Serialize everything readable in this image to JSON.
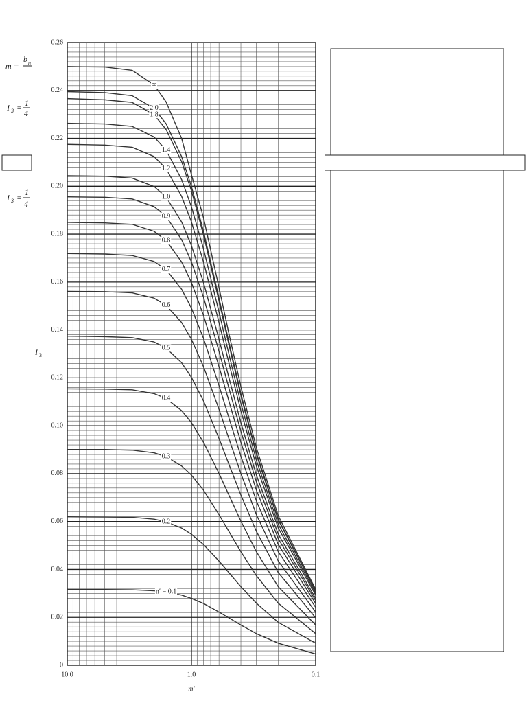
{
  "chart_data": {
    "type": "line",
    "xlabel": "m′",
    "ylabel": "I",
    "ylabel_sub": "3",
    "x": [
      10,
      5,
      3,
      2,
      1.6,
      1.2,
      1.0,
      0.8,
      0.6,
      0.5,
      0.4,
      0.3,
      0.2,
      0.1
    ],
    "xlim": [
      10,
      0.1
    ],
    "xscale": "log",
    "xticks": [
      {
        "value": 10,
        "label": "10.0"
      },
      {
        "value": 1,
        "label": "1.0"
      },
      {
        "value": 0.1,
        "label": "0.1"
      }
    ],
    "minor_xticks": [
      9,
      8,
      7,
      6,
      5,
      4,
      3,
      2,
      0.9,
      0.8,
      0.7,
      0.6,
      0.5,
      0.4,
      0.3,
      0.2
    ],
    "ylim": [
      0,
      0.26
    ],
    "yticks": [
      0,
      0.02,
      0.04,
      0.06,
      0.08,
      {
        "value": 0.1,
        "label": "0.10"
      },
      0.12,
      0.14,
      0.16,
      0.18,
      {
        "value": 0.2,
        "label": "0.20"
      },
      0.22,
      0.24,
      0.26
    ],
    "minor_yticks": [
      0.002,
      0.004,
      0.006,
      0.008,
      0.01,
      0.012,
      0.014,
      0.016,
      0.018,
      0.022,
      0.024,
      0.026,
      0.028,
      0.03,
      0.032,
      0.034,
      0.036,
      0.038,
      0.042,
      0.044,
      0.046,
      0.048,
      0.05,
      0.052,
      0.054,
      0.056,
      0.058,
      0.062,
      0.064,
      0.066,
      0.068,
      0.07,
      0.072,
      0.074,
      0.076,
      0.078,
      0.082,
      0.084,
      0.086,
      0.088,
      0.09,
      0.092,
      0.094,
      0.096,
      0.098,
      0.102,
      0.104,
      0.106,
      0.108,
      0.11,
      0.112,
      0.114,
      0.116,
      0.118,
      0.122,
      0.124,
      0.126,
      0.128,
      0.13,
      0.132,
      0.134,
      0.136,
      0.138,
      0.142,
      0.144,
      0.146,
      0.148,
      0.15,
      0.152,
      0.154,
      0.156,
      0.158,
      0.162,
      0.164,
      0.166,
      0.168,
      0.17,
      0.172,
      0.174,
      0.176,
      0.178,
      0.182,
      0.184,
      0.186,
      0.188,
      0.19,
      0.192,
      0.194,
      0.196,
      0.198,
      0.202,
      0.204,
      0.206,
      0.208,
      0.21,
      0.212,
      0.214,
      0.216,
      0.218,
      0.222,
      0.224,
      0.226,
      0.228,
      0.23,
      0.232,
      0.234,
      0.236,
      0.238,
      0.242,
      0.244,
      0.246,
      0.248,
      0.25,
      0.252,
      0.254,
      0.256,
      0.258
    ],
    "grid": true,
    "series": [
      {
        "name": "∞",
        "color": "#333",
        "values": [
          0.25,
          0.2498,
          0.2484,
          0.2423,
          0.2352,
          0.22,
          0.2048,
          0.1869,
          0.1577,
          0.1386,
          0.1164,
          0.0908,
          0.0624,
          0.0317
        ]
      },
      {
        "name": "2.0",
        "color": "#333",
        "values": [
          0.2395,
          0.2391,
          0.2378,
          0.2325,
          0.2261,
          0.2124,
          0.1999,
          0.1812,
          0.1533,
          0.135,
          0.1134,
          0.0887,
          0.061,
          0.0311
        ]
      },
      {
        "name": "1.8",
        "color": "#333",
        "values": [
          0.2366,
          0.2361,
          0.235,
          0.2299,
          0.2237,
          0.2103,
          0.1981,
          0.1797,
          0.1521,
          0.134,
          0.1126,
          0.088,
          0.0606,
          0.0309
        ]
      },
      {
        "name": "1.4",
        "color": "#333",
        "values": [
          0.2263,
          0.226,
          0.225,
          0.2206,
          0.2151,
          0.2028,
          0.1914,
          0.1739,
          0.1475,
          0.13,
          0.1094,
          0.0856,
          0.0589,
          0.0301
        ]
      },
      {
        "name": "1.2",
        "color": "#333",
        "values": [
          0.2175,
          0.2172,
          0.2163,
          0.2124,
          0.2073,
          0.1958,
          0.1851,
          0.1684,
          0.1431,
          0.1263,
          0.1063,
          0.0832,
          0.0573,
          0.0293
        ]
      },
      {
        "name": "1.0",
        "color": "#333",
        "values": [
          0.2044,
          0.2042,
          0.2034,
          0.1999,
          0.1955,
          0.1851,
          0.1752,
          0.1598,
          0.1361,
          0.1202,
          0.1013,
          0.0794,
          0.0547,
          0.0279
        ]
      },
      {
        "name": "0.9",
        "color": "#333",
        "values": [
          0.1956,
          0.1954,
          0.1947,
          0.1915,
          0.1874,
          0.1777,
          0.1684,
          0.1537,
          0.1311,
          0.1158,
          0.0977,
          0.0766,
          0.0528,
          0.027
        ]
      },
      {
        "name": "0.8",
        "color": "#333",
        "values": [
          0.1849,
          0.1847,
          0.1841,
          0.1812,
          0.1774,
          0.1684,
          0.1598,
          0.1461,
          0.1247,
          0.1104,
          0.0931,
          0.0731,
          0.0504,
          0.0258
        ]
      },
      {
        "name": "0.7",
        "color": "#333",
        "values": [
          0.1719,
          0.1717,
          0.1711,
          0.1686,
          0.1652,
          0.157,
          0.1491,
          0.1365,
          0.1168,
          0.1034,
          0.0873,
          0.0686,
          0.0474,
          0.0242
        ]
      },
      {
        "name": "0.6",
        "color": "#333",
        "values": [
          0.1561,
          0.156,
          0.1555,
          0.1533,
          0.1503,
          0.1431,
          0.1361,
          0.1247,
          0.1069,
          0.0947,
          0.0801,
          0.0629,
          0.0435,
          0.0222
        ]
      },
      {
        "name": "0.5",
        "color": "#333",
        "values": [
          0.1374,
          0.1372,
          0.1368,
          0.135,
          0.1324,
          0.1263,
          0.1202,
          0.1104,
          0.0947,
          0.084,
          0.0711,
          0.0559,
          0.0387,
          0.0198
        ]
      },
      {
        "name": "0.4",
        "color": "#333",
        "values": [
          0.1154,
          0.1153,
          0.115,
          0.1134,
          0.1114,
          0.1063,
          0.1013,
          0.0931,
          0.0801,
          0.0711,
          0.0602,
          0.0474,
          0.0328,
          0.0168
        ]
      },
      {
        "name": "0.3",
        "color": "#333",
        "values": [
          0.0901,
          0.0901,
          0.0898,
          0.0887,
          0.0871,
          0.0832,
          0.0794,
          0.0731,
          0.0629,
          0.0559,
          0.0474,
          0.0374,
          0.0259,
          0.0132
        ]
      },
      {
        "name": "0.2",
        "color": "#333",
        "values": [
          0.062,
          0.0619,
          0.0618,
          0.061,
          0.0599,
          0.0573,
          0.0547,
          0.0504,
          0.0435,
          0.0387,
          0.0328,
          0.0259,
          0.0179,
          0.0092
        ]
      },
      {
        "name": "n′ = 0.1",
        "color": "#333",
        "values": [
          0.0316,
          0.0316,
          0.0315,
          0.0311,
          0.0306,
          0.0293,
          0.0279,
          0.0258,
          0.0222,
          0.0198,
          0.0168,
          0.0132,
          0.0092,
          0.0047
        ]
      }
    ]
  },
  "left_notes": [
    {
      "lead": "m =",
      "numerator": "b",
      "numerator_sub": "n"
    },
    {
      "lead": "I",
      "lead_sub": "3",
      "eq": "=",
      "numerator": "1",
      "denominator": "4"
    },
    {
      "lead": "I",
      "lead_sub": "3",
      "eq": "=",
      "numerator": "1",
      "denominator": "4"
    }
  ]
}
